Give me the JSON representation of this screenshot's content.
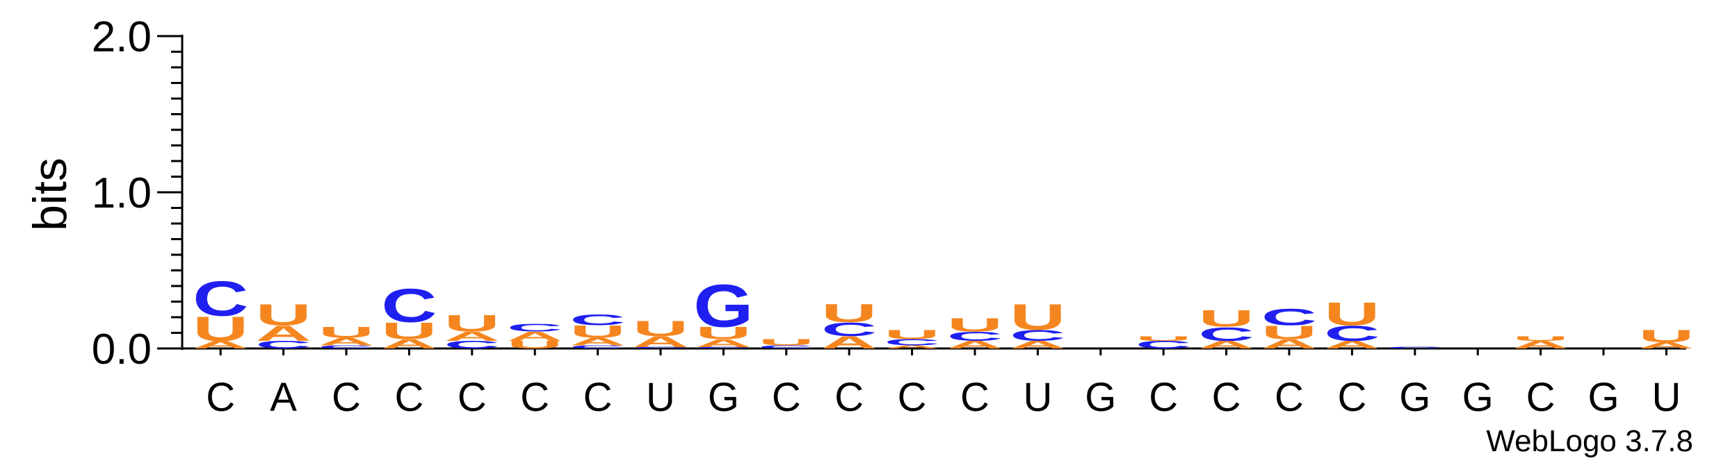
{
  "chart_data": {
    "type": "sequence-logo",
    "ylabel": "bits",
    "ylim": [
      0,
      2.0
    ],
    "yticks": [
      "0.0",
      "1.0",
      "2.0"
    ],
    "xtick_labels": [
      "C",
      "A",
      "C",
      "C",
      "C",
      "C",
      "C",
      "U",
      "G",
      "C",
      "C",
      "C",
      "C",
      "U",
      "G",
      "C",
      "C",
      "C",
      "C",
      "G",
      "G",
      "C",
      "G",
      "U"
    ],
    "colors": {
      "A": "#F5861F",
      "U": "#F5861F",
      "C": "#1F1FF0",
      "G": "#1F1FF0"
    },
    "positions": [
      [
        [
          "A",
          0.05
        ],
        [
          "U",
          0.16
        ],
        [
          "C",
          0.23
        ]
      ],
      [
        [
          "C",
          0.05
        ],
        [
          "A",
          0.1
        ],
        [
          "U",
          0.14
        ]
      ],
      [
        [
          "C",
          0.02
        ],
        [
          "A",
          0.05
        ],
        [
          "U",
          0.07
        ]
      ],
      [
        [
          "A",
          0.06
        ],
        [
          "U",
          0.11
        ],
        [
          "C",
          0.22
        ]
      ],
      [
        [
          "C",
          0.05
        ],
        [
          "A",
          0.06
        ],
        [
          "U",
          0.11
        ]
      ],
      [
        [
          "U",
          0.05
        ],
        [
          "A",
          0.06
        ],
        [
          "C",
          0.05
        ]
      ],
      [
        [
          "C",
          0.02
        ],
        [
          "A",
          0.05
        ],
        [
          "U",
          0.08
        ],
        [
          "C",
          0.07
        ]
      ],
      [
        [
          "C",
          0.01
        ],
        [
          "A",
          0.07
        ],
        [
          "U",
          0.1
        ]
      ],
      [
        [
          "C",
          0.01
        ],
        [
          "A",
          0.05
        ],
        [
          "U",
          0.08
        ],
        [
          "G",
          0.28
        ]
      ],
      [
        [
          "C",
          0.02
        ],
        [
          "U",
          0.04
        ]
      ],
      [
        [
          "A",
          0.08
        ],
        [
          "C",
          0.09
        ],
        [
          "U",
          0.12
        ]
      ],
      [
        [
          "A",
          0.02
        ],
        [
          "C",
          0.04
        ],
        [
          "U",
          0.06
        ]
      ],
      [
        [
          "A",
          0.05
        ],
        [
          "C",
          0.06
        ],
        [
          "U",
          0.09
        ]
      ],
      [
        [
          "A",
          0.05
        ],
        [
          "C",
          0.07
        ],
        [
          "U",
          0.17
        ]
      ],
      [],
      [
        [
          "C",
          0.05
        ],
        [
          "U",
          0.03
        ]
      ],
      [
        [
          "A",
          0.05
        ],
        [
          "C",
          0.09
        ],
        [
          "U",
          0.11
        ]
      ],
      [
        [
          "A",
          0.06
        ],
        [
          "U",
          0.09
        ],
        [
          "C",
          0.11
        ]
      ],
      [
        [
          "A",
          0.05
        ],
        [
          "C",
          0.1
        ],
        [
          "U",
          0.15
        ]
      ],
      [
        [
          "C",
          0.01
        ]
      ],
      [],
      [
        [
          "A",
          0.05
        ],
        [
          "U",
          0.03
        ]
      ],
      [],
      [
        [
          "A",
          0.04
        ],
        [
          "U",
          0.08
        ]
      ]
    ]
  },
  "footer": {
    "credit": "WebLogo 3.7.8"
  }
}
